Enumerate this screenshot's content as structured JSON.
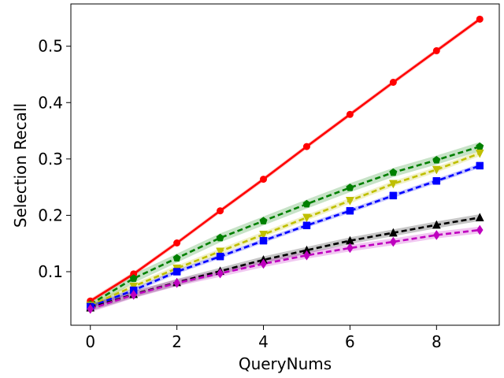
{
  "chart_data": {
    "type": "line",
    "title": "",
    "xlabel": "QueryNums",
    "ylabel": "Selection Recall",
    "xlim": [
      -0.45,
      9.45
    ],
    "ylim": [
      0.005,
      0.575
    ],
    "grid": false,
    "x": [
      0,
      1,
      2,
      3,
      4,
      5,
      6,
      7,
      8,
      9
    ],
    "x_ticks": [
      0,
      2,
      4,
      6,
      8
    ],
    "y_ticks": [
      0.1,
      0.2,
      0.3,
      0.4,
      0.5
    ],
    "x_tick_labels": [
      "0",
      "2",
      "4",
      "6",
      "8"
    ],
    "y_tick_labels": [
      "0.1",
      "0.2",
      "0.3",
      "0.4",
      "0.5"
    ],
    "series": [
      {
        "color": "#ff0000",
        "line": "solid",
        "marker": "circle",
        "values": [
          0.048,
          0.096,
          0.151,
          0.208,
          0.264,
          0.322,
          0.379,
          0.436,
          0.492,
          0.548
        ],
        "band": 0.004
      },
      {
        "color": "#008000",
        "line": "dashed",
        "marker": "pentagon",
        "values": [
          0.042,
          0.088,
          0.124,
          0.16,
          0.19,
          0.22,
          0.249,
          0.276,
          0.298,
          0.322
        ],
        "band": 0.008
      },
      {
        "color": "#bfbf00",
        "line": "dashed",
        "marker": "triangle-down",
        "values": [
          0.04,
          0.074,
          0.106,
          0.136,
          0.166,
          0.196,
          0.226,
          0.256,
          0.281,
          0.31
        ],
        "band": 0.005
      },
      {
        "color": "#0000ff",
        "line": "dashed",
        "marker": "square",
        "values": [
          0.038,
          0.067,
          0.1,
          0.127,
          0.155,
          0.182,
          0.208,
          0.235,
          0.261,
          0.288
        ],
        "band": 0.004
      },
      {
        "color": "#000000",
        "line": "dashed",
        "marker": "triangle-up",
        "values": [
          0.036,
          0.06,
          0.081,
          0.101,
          0.121,
          0.138,
          0.155,
          0.169,
          0.183,
          0.196
        ],
        "band": 0.006
      },
      {
        "color": "#bf00bf",
        "line": "dashed",
        "marker": "diamond",
        "values": [
          0.034,
          0.059,
          0.08,
          0.097,
          0.114,
          0.129,
          0.142,
          0.153,
          0.165,
          0.174
        ],
        "band": 0.006
      }
    ]
  }
}
